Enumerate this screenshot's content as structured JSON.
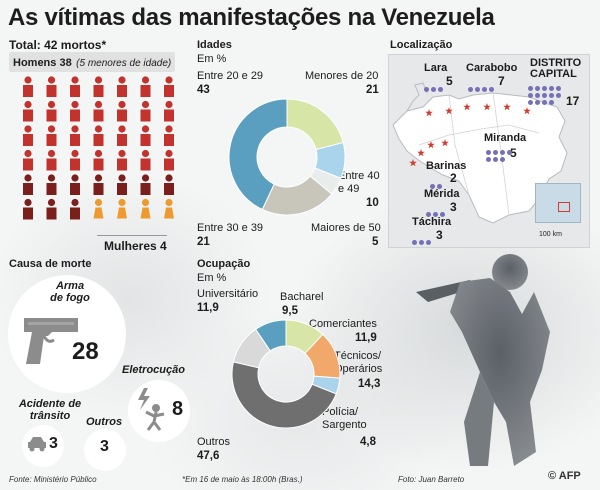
{
  "title": "As vítimas das manifestações na Venezuela",
  "total": {
    "label": "Total: 42 mortos*",
    "men_label": "Homens 38",
    "men_note": "(5 menores de idade)",
    "women_label": "Mulheres 4",
    "men_count": 38,
    "women_count": 4
  },
  "colors": {
    "men": "#c2332d",
    "men_dark": "#7a1f1b",
    "women": "#ef9a2e",
    "teal": "#5a9fc0",
    "green_light": "#d7e6a6",
    "orange": "#f2a86a",
    "gray": "#c8c5bb",
    "light_blue": "#a9d4ec",
    "dark_gray": "#6f6f6f",
    "map_dot": "#7570b8",
    "map_star": "#d33b2c"
  },
  "ages": {
    "heading": "Idades",
    "unit": "Em %",
    "labels": {
      "a20_29": "Entre 20 e 29",
      "u20": "Menores de 20",
      "a40_49": "Entre 40 e 49",
      "o50": "Maiores de 50",
      "a30_39": "Entre 30 e 39"
    },
    "values": {
      "a20_29": "43",
      "u20": "21",
      "a40_49": "10",
      "o50": "5",
      "a30_39": "21"
    }
  },
  "location": {
    "heading": "Localização",
    "places": {
      "lara": {
        "name": "Lara",
        "value": "5"
      },
      "carabobo": {
        "name": "Carabobo",
        "value": "7"
      },
      "dc": {
        "name": "DISTRITO CAPITAL",
        "value": "17"
      },
      "barinas": {
        "name": "Barinas",
        "value": "2"
      },
      "miranda": {
        "name": "Miranda",
        "value": "5"
      },
      "merida": {
        "name": "Mérida",
        "value": "3"
      },
      "tachira": {
        "name": "Táchira",
        "value": "3"
      }
    },
    "scale": "100 km"
  },
  "cause": {
    "heading": "Causa de morte",
    "firearm": {
      "label": "Arma de fogo",
      "value": "28"
    },
    "electro": {
      "label": "Eletrocução",
      "value": "8"
    },
    "traffic": {
      "label": "Acidente de trânsito",
      "value": "3"
    },
    "others": {
      "label": "Outros",
      "value": "3"
    }
  },
  "occupation": {
    "heading": "Ocupação",
    "unit": "Em %",
    "labels": {
      "uni": "Universitário",
      "bach": "Bacharel",
      "com": "Comerciantes",
      "tec": "Técnicos/ Operários",
      "pol": "Polícia/ Sargento",
      "oth": "Outros"
    },
    "values": {
      "uni": "11,9",
      "bach": "9,5",
      "com": "11,9",
      "tec": "14,3",
      "pol": "4,8",
      "oth": "47,6"
    }
  },
  "footer": {
    "source": "Fonte: Ministério Público",
    "date_note": "*Em 16 de maio às 18:00h (Bras.)",
    "photo": "Foto: Juan Barreto",
    "credit": "© AFP"
  },
  "chart_data": [
    {
      "type": "pie",
      "title": "Idades",
      "categories": [
        "Entre 20 e 29",
        "Menores de 20",
        "Entre 40 e 49",
        "Maiores de 50",
        "Entre 30 e 39"
      ],
      "values": [
        43,
        21,
        10,
        5,
        21
      ],
      "unit": "Em %"
    },
    {
      "type": "pie",
      "title": "Ocupação",
      "categories": [
        "Universitário",
        "Bacharel",
        "Comerciantes",
        "Técnicos/ Operários",
        "Polícia/ Sargento",
        "Outros"
      ],
      "values": [
        11.9,
        9.5,
        11.9,
        14.3,
        4.8,
        47.6
      ],
      "unit": "Em %"
    }
  ]
}
